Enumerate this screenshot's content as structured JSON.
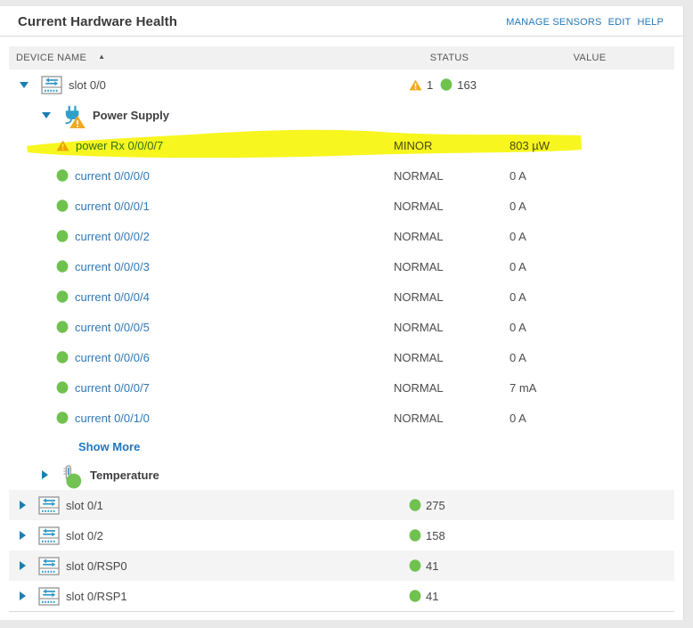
{
  "colors": {
    "link_blue": "#2478b7",
    "tree_link_blue": "#3078b6",
    "caret_blue": "#1b7eb5",
    "ok_green": "#6fc24e",
    "warning_orange": "#f3a81d",
    "stripe_gray": "#f4f4f4",
    "highlight_yellow": "#f7f500"
  },
  "header": {
    "title": "Current Hardware Health",
    "links": [
      "MANAGE SENSORS",
      "EDIT",
      "HELP"
    ]
  },
  "table": {
    "columns": [
      {
        "label": "DEVICE NAME"
      },
      {
        "label": "STATUS"
      },
      {
        "label": "VALUE"
      }
    ],
    "sort": {
      "column": "DEVICE NAME",
      "direction": "asc",
      "glyph": "▲"
    }
  },
  "rows": [
    {
      "type": "slot",
      "level": 0,
      "caret": "expanded",
      "icon": "slot",
      "label": "slot 0/0",
      "badges": [
        {
          "kind": "warning",
          "count": "1"
        },
        {
          "kind": "ok",
          "count": "163"
        }
      ],
      "striped": false
    },
    {
      "type": "category",
      "level": 1,
      "caret": "expanded",
      "icon": "power-supply-warning",
      "label": "Power Supply"
    },
    {
      "type": "sensor",
      "level": 2,
      "icon": "warning",
      "label": "power Rx 0/0/0/7",
      "status": "MINOR",
      "value": "803 µW",
      "highlighted": true
    },
    {
      "type": "sensor",
      "level": 2,
      "icon": "ok",
      "label": "current 0/0/0/0",
      "status": "NORMAL",
      "value": "0 A"
    },
    {
      "type": "sensor",
      "level": 2,
      "icon": "ok",
      "label": "current 0/0/0/1",
      "status": "NORMAL",
      "value": "0 A"
    },
    {
      "type": "sensor",
      "level": 2,
      "icon": "ok",
      "label": "current 0/0/0/2",
      "status": "NORMAL",
      "value": "0 A"
    },
    {
      "type": "sensor",
      "level": 2,
      "icon": "ok",
      "label": "current 0/0/0/3",
      "status": "NORMAL",
      "value": "0 A"
    },
    {
      "type": "sensor",
      "level": 2,
      "icon": "ok",
      "label": "current 0/0/0/4",
      "status": "NORMAL",
      "value": "0 A"
    },
    {
      "type": "sensor",
      "level": 2,
      "icon": "ok",
      "label": "current 0/0/0/5",
      "status": "NORMAL",
      "value": "0 A"
    },
    {
      "type": "sensor",
      "level": 2,
      "icon": "ok",
      "label": "current 0/0/0/6",
      "status": "NORMAL",
      "value": "0 A"
    },
    {
      "type": "sensor",
      "level": 2,
      "icon": "ok",
      "label": "current 0/0/0/7",
      "status": "NORMAL",
      "value": "7 mA"
    },
    {
      "type": "sensor",
      "level": 2,
      "icon": "ok",
      "label": "current 0/0/1/0",
      "status": "NORMAL",
      "value": "0 A"
    },
    {
      "type": "show-more",
      "label": "Show More"
    },
    {
      "type": "category",
      "level": 1,
      "caret": "collapsed",
      "icon": "thermometer-ok",
      "label": "Temperature"
    },
    {
      "type": "slot",
      "level": 0,
      "caret": "collapsed",
      "icon": "slot",
      "label": "slot 0/1",
      "badges": [
        {
          "kind": "ok",
          "count": "275"
        }
      ],
      "striped": true
    },
    {
      "type": "slot",
      "level": 0,
      "caret": "collapsed",
      "icon": "slot",
      "label": "slot 0/2",
      "badges": [
        {
          "kind": "ok",
          "count": "158"
        }
      ],
      "striped": false
    },
    {
      "type": "slot",
      "level": 0,
      "caret": "collapsed",
      "icon": "slot",
      "label": "slot 0/RSP0",
      "badges": [
        {
          "kind": "ok",
          "count": "41"
        }
      ],
      "striped": true
    },
    {
      "type": "slot",
      "level": 0,
      "caret": "collapsed",
      "icon": "slot",
      "label": "slot 0/RSP1",
      "badges": [
        {
          "kind": "ok",
          "count": "41"
        }
      ],
      "striped": false
    }
  ],
  "annotation": {
    "type": "highlighter-stroke",
    "color": "#f7f500",
    "target_row": "power Rx 0/0/0/7"
  }
}
